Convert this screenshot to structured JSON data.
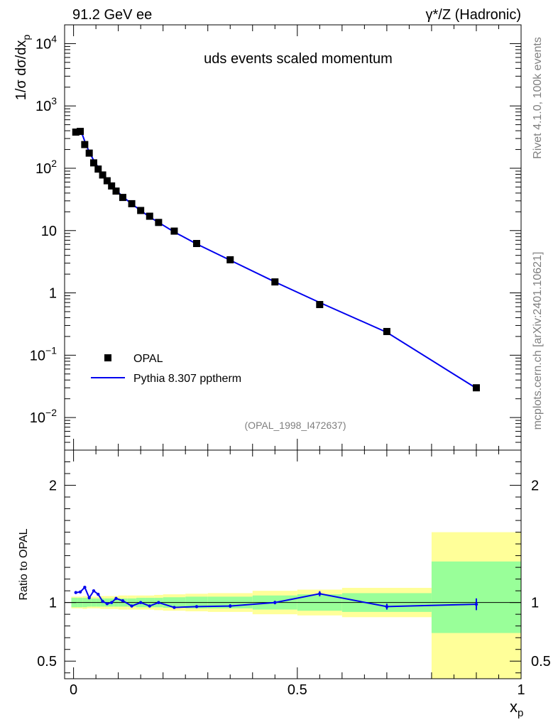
{
  "header": {
    "left": "91.2 GeV ee",
    "right": "γ*/Z (Hadronic)"
  },
  "side_labels": {
    "rivet": "Rivet 4.1.0,  100k events",
    "mcplots": "mcplots.cern.ch [arXiv:2401.10621]"
  },
  "chart_data": {
    "type": "line",
    "title": "uds events scaled momentum",
    "analysis_id": "(OPAL_1998_I472637)",
    "xlabel_main": "x",
    "xlabel_sub": "p",
    "ylabel": "1/σ  dσ/dx",
    "ylabel_sub": "p",
    "ratio_ylabel": "Ratio to OPAL",
    "xlim": [
      -0.02,
      1.0
    ],
    "ylim_main": [
      0.003,
      20000
    ],
    "ylog": true,
    "ylim_ratio": [
      0.35,
      2.3
    ],
    "x_ticks": [
      {
        "value": 0,
        "label": "0"
      },
      {
        "value": 0.5,
        "label": "0.5"
      },
      {
        "value": 1,
        "label": "1"
      }
    ],
    "y_ticks_main": [
      {
        "value": 10000,
        "mant": "10",
        "exp": "4"
      },
      {
        "value": 1000,
        "mant": "10",
        "exp": "3"
      },
      {
        "value": 100,
        "mant": "10",
        "exp": "2"
      },
      {
        "value": 10,
        "mant": "10",
        "exp": ""
      },
      {
        "value": 1,
        "mant": "1",
        "exp": ""
      },
      {
        "value": 0.1,
        "mant": "10",
        "exp": "−1"
      },
      {
        "value": 0.01,
        "mant": "10",
        "exp": "−2"
      }
    ],
    "y_ticks_ratio": [
      {
        "value": 2,
        "label": "2"
      },
      {
        "value": 1,
        "label": "1"
      },
      {
        "value": 0.5,
        "label": "0.5"
      }
    ],
    "legend": [
      {
        "label": "OPAL",
        "kind": "marker"
      },
      {
        "label": "Pythia 8.307 pptherm",
        "kind": "line"
      }
    ],
    "series": [
      {
        "name": "OPAL",
        "x": [
          0.005,
          0.015,
          0.025,
          0.035,
          0.045,
          0.055,
          0.065,
          0.075,
          0.085,
          0.095,
          0.11,
          0.13,
          0.15,
          0.17,
          0.19,
          0.225,
          0.275,
          0.35,
          0.45,
          0.55,
          0.7,
          0.9
        ],
        "y": [
          380,
          390,
          240,
          175,
          122,
          97,
          78,
          63,
          52,
          43,
          34,
          27,
          21,
          17,
          13.5,
          9.8,
          6.2,
          3.4,
          1.5,
          0.65,
          0.24,
          0.03
        ]
      },
      {
        "name": "Pythia 8.307 pptherm",
        "x": [
          0.005,
          0.015,
          0.025,
          0.035,
          0.045,
          0.055,
          0.065,
          0.075,
          0.085,
          0.095,
          0.11,
          0.13,
          0.15,
          0.17,
          0.19,
          0.225,
          0.275,
          0.35,
          0.45,
          0.55,
          0.7,
          0.9
        ],
        "y": [
          412,
          426,
          271,
          182,
          134,
          104,
          79,
          63,
          53,
          44.5,
          35,
          26.7,
          21,
          16.5,
          13.5,
          9.5,
          6.1,
          3.35,
          1.5,
          0.7,
          0.233,
          0.0295
        ]
      }
    ],
    "ratio": {
      "x": [
        0.005,
        0.015,
        0.025,
        0.035,
        0.045,
        0.055,
        0.065,
        0.075,
        0.085,
        0.095,
        0.11,
        0.13,
        0.15,
        0.17,
        0.19,
        0.225,
        0.275,
        0.35,
        0.45,
        0.55,
        0.7,
        0.9
      ],
      "values": [
        1.085,
        1.09,
        1.13,
        1.04,
        1.1,
        1.07,
        1.01,
        0.99,
        1.0,
        1.035,
        1.015,
        0.97,
        1.0,
        0.97,
        1.0,
        0.958,
        0.965,
        0.97,
        1.0,
        1.075,
        0.965,
        0.985
      ],
      "errors": [
        0.005,
        0.005,
        0.005,
        0.006,
        0.006,
        0.006,
        0.006,
        0.007,
        0.007,
        0.007,
        0.007,
        0.008,
        0.008,
        0.009,
        0.009,
        0.01,
        0.012,
        0.015,
        0.015,
        0.022,
        0.025,
        0.05
      ]
    },
    "bands": [
      {
        "x0": -0.005,
        "x1": 0.01,
        "inner": [
          0.96,
          1.04
        ],
        "outer": [
          0.95,
          1.05
        ]
      },
      {
        "x0": 0.01,
        "x1": 0.02,
        "inner": [
          0.96,
          1.04
        ],
        "outer": [
          0.95,
          1.05
        ]
      },
      {
        "x0": 0.02,
        "x1": 0.03,
        "inner": [
          0.96,
          1.04
        ],
        "outer": [
          0.945,
          1.055
        ]
      },
      {
        "x0": 0.03,
        "x1": 0.04,
        "inner": [
          0.965,
          1.035
        ],
        "outer": [
          0.95,
          1.05
        ]
      },
      {
        "x0": 0.04,
        "x1": 0.05,
        "inner": [
          0.965,
          1.035
        ],
        "outer": [
          0.95,
          1.05
        ]
      },
      {
        "x0": 0.05,
        "x1": 0.06,
        "inner": [
          0.965,
          1.035
        ],
        "outer": [
          0.95,
          1.05
        ]
      },
      {
        "x0": 0.06,
        "x1": 0.07,
        "inner": [
          0.965,
          1.035
        ],
        "outer": [
          0.945,
          1.055
        ]
      },
      {
        "x0": 0.07,
        "x1": 0.08,
        "inner": [
          0.965,
          1.035
        ],
        "outer": [
          0.945,
          1.055
        ]
      },
      {
        "x0": 0.08,
        "x1": 0.09,
        "inner": [
          0.965,
          1.035
        ],
        "outer": [
          0.945,
          1.055
        ]
      },
      {
        "x0": 0.09,
        "x1": 0.1,
        "inner": [
          0.965,
          1.035
        ],
        "outer": [
          0.945,
          1.055
        ]
      },
      {
        "x0": 0.1,
        "x1": 0.12,
        "inner": [
          0.965,
          1.035
        ],
        "outer": [
          0.94,
          1.06
        ]
      },
      {
        "x0": 0.12,
        "x1": 0.14,
        "inner": [
          0.965,
          1.035
        ],
        "outer": [
          0.94,
          1.06
        ]
      },
      {
        "x0": 0.14,
        "x1": 0.16,
        "inner": [
          0.96,
          1.04
        ],
        "outer": [
          0.94,
          1.06
        ]
      },
      {
        "x0": 0.16,
        "x1": 0.18,
        "inner": [
          0.96,
          1.04
        ],
        "outer": [
          0.94,
          1.06
        ]
      },
      {
        "x0": 0.18,
        "x1": 0.2,
        "inner": [
          0.96,
          1.04
        ],
        "outer": [
          0.935,
          1.065
        ]
      },
      {
        "x0": 0.2,
        "x1": 0.25,
        "inner": [
          0.955,
          1.045
        ],
        "outer": [
          0.93,
          1.07
        ]
      },
      {
        "x0": 0.25,
        "x1": 0.3,
        "inner": [
          0.95,
          1.05
        ],
        "outer": [
          0.925,
          1.075
        ]
      },
      {
        "x0": 0.3,
        "x1": 0.4,
        "inner": [
          0.95,
          1.05
        ],
        "outer": [
          0.92,
          1.08
        ]
      },
      {
        "x0": 0.4,
        "x1": 0.5,
        "inner": [
          0.94,
          1.06
        ],
        "outer": [
          0.9,
          1.1
        ]
      },
      {
        "x0": 0.5,
        "x1": 0.6,
        "inner": [
          0.93,
          1.07
        ],
        "outer": [
          0.89,
          1.11
        ]
      },
      {
        "x0": 0.6,
        "x1": 0.8,
        "inner": [
          0.92,
          1.08
        ],
        "outer": [
          0.875,
          1.125
        ]
      },
      {
        "x0": 0.8,
        "x1": 1.0,
        "inner": [
          0.74,
          1.35
        ],
        "outer": [
          0.35,
          1.6
        ]
      }
    ],
    "colors": {
      "data": "#000000",
      "mc": "#0000ee",
      "band_inner": "#99ff99",
      "band_outer": "#ffff99",
      "axis": "#000000",
      "muted_text": "#7f7f7f"
    }
  }
}
